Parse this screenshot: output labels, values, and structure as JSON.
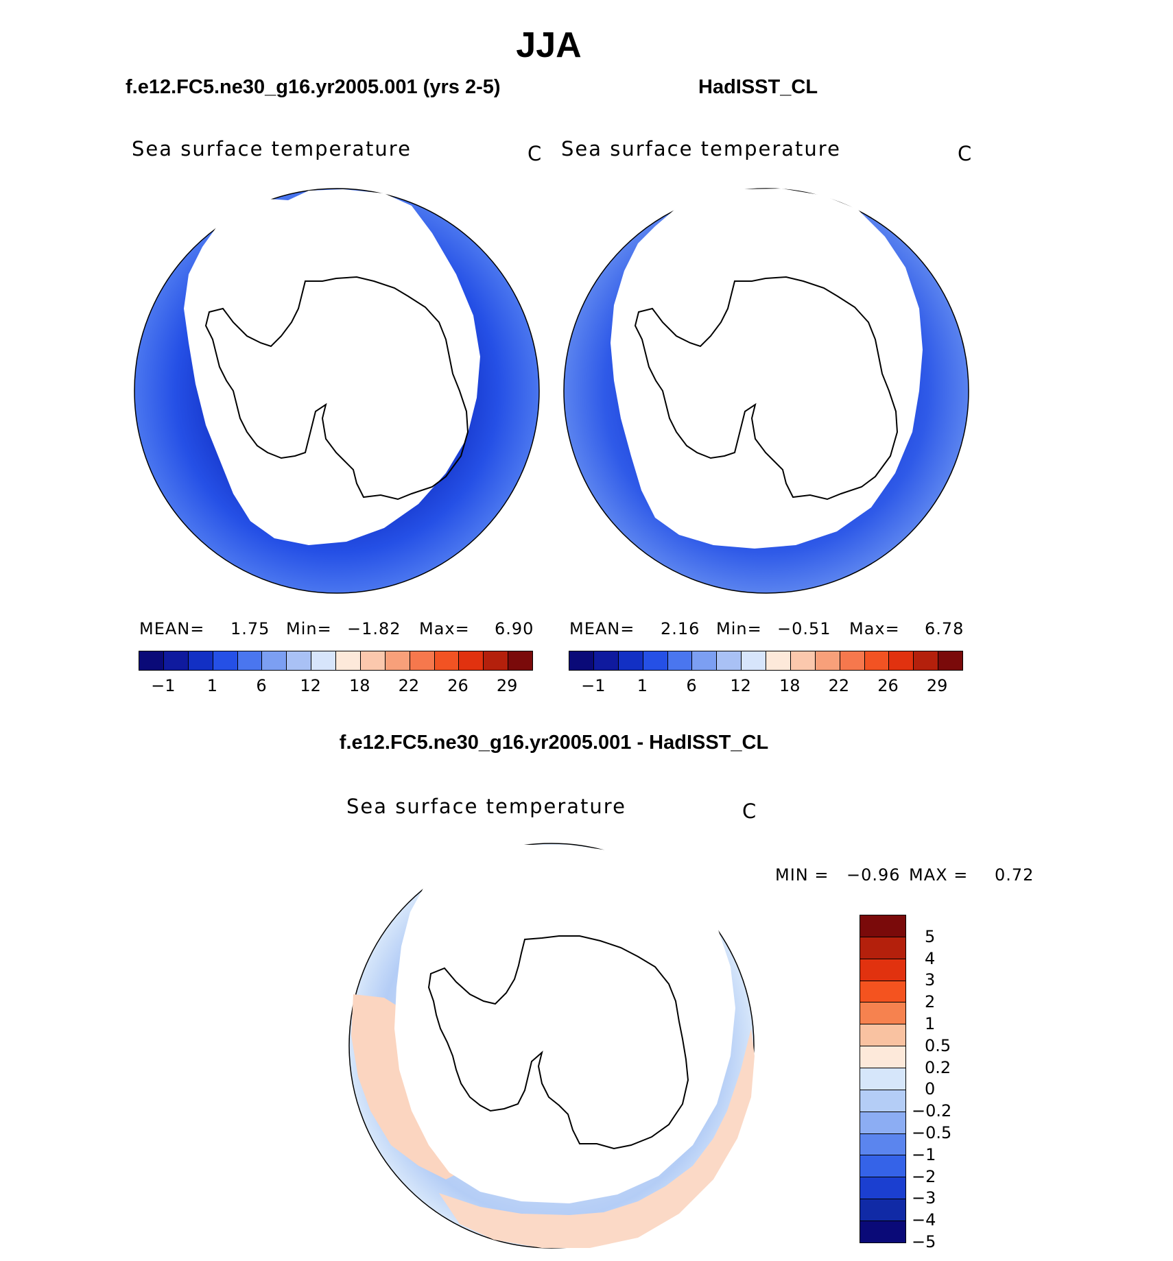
{
  "title": "JJA",
  "panels": {
    "left": {
      "case_title": "f.e12.FC5.ne30_g16.yr2005.001 (yrs 2-5)",
      "variable": "Sea surface temperature",
      "units": "C",
      "mean_label": "MEAN=",
      "mean": "1.75",
      "min_label": "Min=",
      "min": "−1.82",
      "max_label": "Max=",
      "max": "6.90"
    },
    "right": {
      "case_title": "HadISST_CL",
      "variable": "Sea surface temperature",
      "units": "C",
      "mean_label": "MEAN=",
      "mean": "2.16",
      "min_label": "Min=",
      "min": "−0.51",
      "max_label": "Max=",
      "max": "6.78"
    },
    "diff": {
      "case_title": "f.e12.FC5.ne30_g16.yr2005.001 - HadISST_CL",
      "variable": "Sea surface temperature",
      "units": "C",
      "min_label": "MIN =",
      "min": "−0.96",
      "max_label": "MAX =",
      "max": "0.72"
    }
  },
  "colorbar_abs": {
    "colors": [
      "#0a0a78",
      "#0f1a9e",
      "#1230c4",
      "#2550e6",
      "#4a76ef",
      "#7c9ff2",
      "#a9c1f5",
      "#d7e5fb",
      "#fde9da",
      "#fbc8ad",
      "#f8a07a",
      "#f6784d",
      "#f25323",
      "#e1320f",
      "#b4200c",
      "#7a0a0a"
    ],
    "ticks": [
      "−1",
      "1",
      "6",
      "12",
      "18",
      "22",
      "26",
      "29"
    ]
  },
  "colorbar_diff": {
    "colors": [
      "#7a0a0a",
      "#b4200c",
      "#e1320f",
      "#f4531f",
      "#f6824f",
      "#f9c2a1",
      "#fde9da",
      "#d6e6fa",
      "#b4cdf6",
      "#8cadf3",
      "#5b85ee",
      "#3563e8",
      "#1b3fd0",
      "#102aa6",
      "#0a0a78"
    ],
    "ticks": [
      "5",
      "4",
      "3",
      "2",
      "1",
      "0.5",
      "0.2",
      "0",
      "−0.2",
      "−0.5",
      "−1",
      "−2",
      "−3",
      "−4",
      "−5"
    ]
  }
}
